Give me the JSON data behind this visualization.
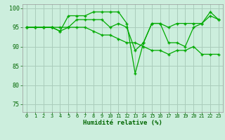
{
  "title": "",
  "xlabel": "Humidité relative (%)",
  "ylabel": "",
  "background_color": "#cceedd",
  "grid_color": "#aaccbb",
  "line_color": "#00aa00",
  "tick_color": "#006600",
  "ylim": [
    73,
    101
  ],
  "xlim": [
    -0.5,
    23.5
  ],
  "yticks": [
    75,
    80,
    85,
    90,
    95,
    100
  ],
  "xticks": [
    0,
    1,
    2,
    3,
    4,
    5,
    6,
    7,
    8,
    9,
    10,
    11,
    12,
    13,
    14,
    15,
    16,
    17,
    18,
    19,
    20,
    21,
    22,
    23
  ],
  "series1": [
    95,
    95,
    95,
    95,
    94,
    95,
    97,
    97,
    97,
    97,
    95,
    96,
    95,
    89,
    91,
    96,
    96,
    95,
    96,
    96,
    96,
    96,
    98,
    97
  ],
  "series2": [
    95,
    95,
    95,
    95,
    94,
    98,
    98,
    98,
    99,
    99,
    99,
    99,
    96,
    83,
    91,
    96,
    96,
    91,
    91,
    90,
    95,
    96,
    99,
    97
  ],
  "series3": [
    95,
    95,
    95,
    95,
    95,
    95,
    95,
    95,
    94,
    93,
    93,
    92,
    91,
    91,
    90,
    89,
    89,
    88,
    89,
    89,
    90,
    88,
    88,
    88
  ]
}
